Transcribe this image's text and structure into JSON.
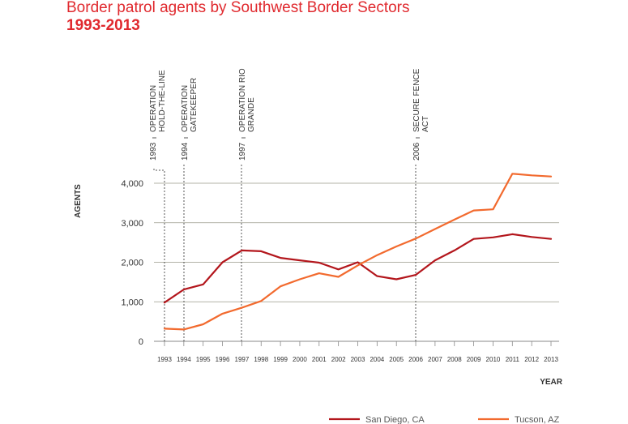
{
  "chart_data": {
    "type": "line",
    "title": "Border patrol agents by Southwest Border Sectors",
    "subtitle": "1993-2013",
    "ylabel": "AGENTS",
    "xlabel": "YEAR",
    "ylim": [
      0,
      4500
    ],
    "yticks": [
      0,
      1000,
      2000,
      3000,
      4000
    ],
    "ytick_labels": [
      "0",
      "1,000",
      "2,000",
      "3,000",
      "4,000"
    ],
    "x": [
      1993,
      1994,
      1995,
      1996,
      1997,
      1998,
      1999,
      2000,
      2001,
      2002,
      2003,
      2004,
      2005,
      2006,
      2007,
      2008,
      2009,
      2010,
      2011,
      2012,
      2013
    ],
    "grid": "horizontal",
    "legend_position": "bottom",
    "series": [
      {
        "name": "San Diego, CA",
        "color": "#b3161c",
        "values": [
          980,
          1310,
          1440,
          2000,
          2300,
          2280,
          2110,
          2050,
          1990,
          1820,
          2000,
          1650,
          1570,
          1680,
          2050,
          2300,
          2590,
          2630,
          2710,
          2640,
          2590
        ]
      },
      {
        "name": "Tucson, AZ",
        "color": "#f26a2e",
        "values": [
          320,
          300,
          430,
          700,
          850,
          1020,
          1390,
          1570,
          1720,
          1630,
          1920,
          2180,
          2400,
          2600,
          2840,
          3080,
          3310,
          3340,
          4240,
          4200,
          4170
        ]
      }
    ],
    "annotations": [
      {
        "year": 1993,
        "label_year": "1993",
        "text": [
          "OPERATION",
          "HOLD-THE-LINE"
        ]
      },
      {
        "year": 1994,
        "label_year": "1994",
        "text": [
          "OPERATION",
          "GATEKEEPER"
        ]
      },
      {
        "year": 1997,
        "label_year": "1997",
        "text": [
          "OPERATION RIO",
          "GRANDE"
        ]
      },
      {
        "year": 2006,
        "label_year": "2006",
        "text": [
          "SECURE FENCE",
          "ACT"
        ]
      }
    ]
  }
}
